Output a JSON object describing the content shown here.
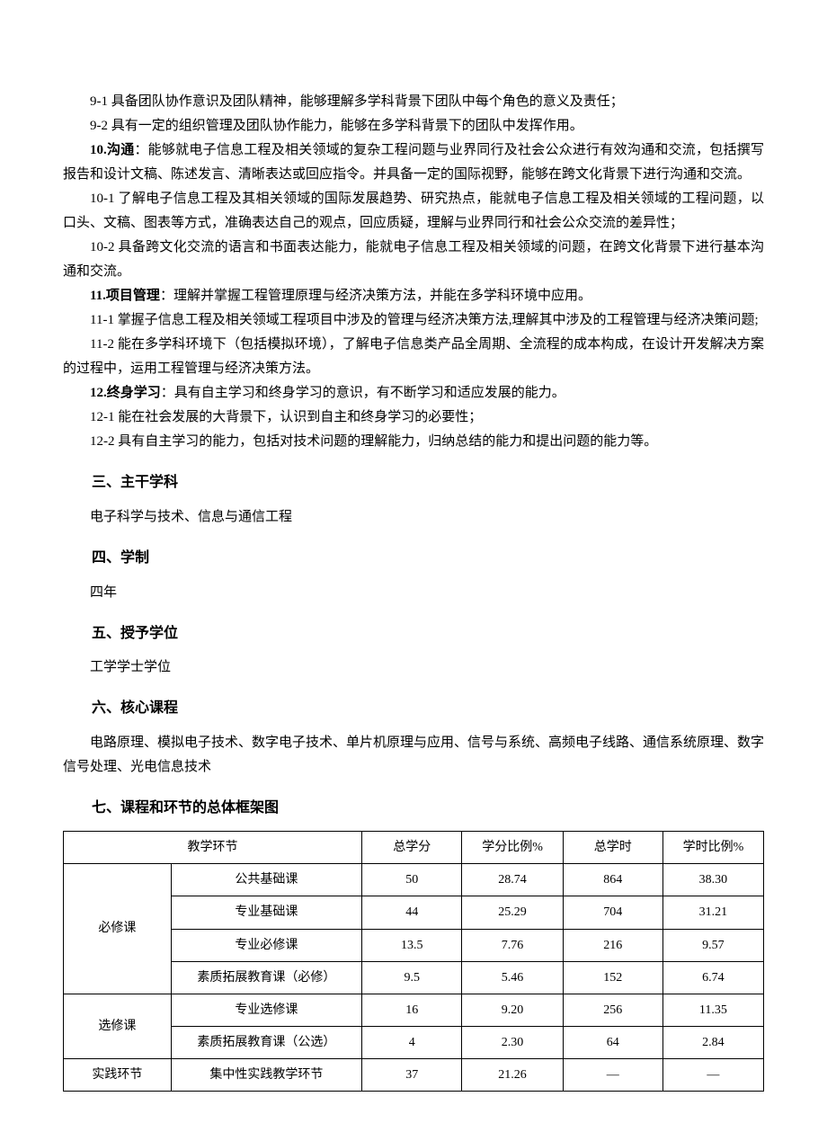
{
  "paragraphs": {
    "p9_1": "9-1 具备团队协作意识及团队精神，能够理解多学科背景下团队中每个角色的意义及责任；",
    "p9_2": "9-2 具有一定的组织管理及团队协作能力，能够在多学科背景下的团队中发挥作用。",
    "p10_title": "10.沟通",
    "p10_body": "：能够就电子信息工程及相关领域的复杂工程问题与业界同行及社会公众进行有效沟通和交流，包括撰写报告和设计文稿、陈述发言、清晰表达或回应指令。并具备一定的国际视野，能够在跨文化背景下进行沟通和交流。",
    "p10_1": "10-1 了解电子信息工程及其相关领域的国际发展趋势、研究热点，能就电子信息工程及相关领域的工程问题，以口头、文稿、图表等方式，准确表达自己的观点，回应质疑，理解与业界同行和社会公众交流的差异性；",
    "p10_2": "10-2 具备跨文化交流的语言和书面表达能力，能就电子信息工程及相关领域的问题，在跨文化背景下进行基本沟通和交流。",
    "p11_title": "11.项目管理",
    "p11_body": "：理解并掌握工程管理原理与经济决策方法，并能在多学科环境中应用。",
    "p11_1": "11-1 掌握子信息工程及相关领域工程项目中涉及的管理与经济决策方法,理解其中涉及的工程管理与经济决策问题;",
    "p11_2": "11-2 能在多学科环境下（包括模拟环境），了解电子信息类产品全周期、全流程的成本构成，在设计开发解决方案的过程中，运用工程管理与经济决策方法。",
    "p12_title": "12.终身学习",
    "p12_body": "：具有自主学习和终身学习的意识，有不断学习和适应发展的能力。",
    "p12_1": "12-1 能在社会发展的大背景下，认识到自主和终身学习的必要性；",
    "p12_2": "12-2 具有自主学习的能力，包括对技术问题的理解能力，归纳总结的能力和提出问题的能力等。"
  },
  "sections": {
    "s3_heading": "三、主干学科",
    "s3_body": "电子科学与技术、信息与通信工程",
    "s4_heading": "四、学制",
    "s4_body": "四年",
    "s5_heading": "五、授予学位",
    "s5_body": "工学学士学位",
    "s6_heading": "六、核心课程",
    "s6_body": "电路原理、模拟电子技术、数字电子技术、单片机原理与应用、信号与系统、高频电子线路、通信系统原理、数字信号处理、光电信息技术",
    "s7_heading": "七、课程和环节的总体框架图"
  },
  "table": {
    "header": {
      "col12": "教学环节",
      "col3": "总学分",
      "col4": "学分比例%",
      "col5": "总学时",
      "col6": "学时比例%"
    },
    "groups": {
      "g1": "必修课",
      "g2": "选修课",
      "g3": "实践环节"
    },
    "rows": [
      {
        "sub": "公共基础课",
        "credit": "50",
        "credit_pct": "28.74",
        "hours": "864",
        "hours_pct": "38.30"
      },
      {
        "sub": "专业基础课",
        "credit": "44",
        "credit_pct": "25.29",
        "hours": "704",
        "hours_pct": "31.21"
      },
      {
        "sub": "专业必修课",
        "credit": "13.5",
        "credit_pct": "7.76",
        "hours": "216",
        "hours_pct": "9.57"
      },
      {
        "sub": "素质拓展教育课（必修）",
        "credit": "9.5",
        "credit_pct": "5.46",
        "hours": "152",
        "hours_pct": "6.74"
      },
      {
        "sub": "专业选修课",
        "credit": "16",
        "credit_pct": "9.20",
        "hours": "256",
        "hours_pct": "11.35"
      },
      {
        "sub": "素质拓展教育课（公选）",
        "credit": "4",
        "credit_pct": "2.30",
        "hours": "64",
        "hours_pct": "2.84"
      },
      {
        "sub": "集中性实践教学环节",
        "credit": "37",
        "credit_pct": "21.26",
        "hours": "—",
        "hours_pct": "—"
      }
    ]
  }
}
